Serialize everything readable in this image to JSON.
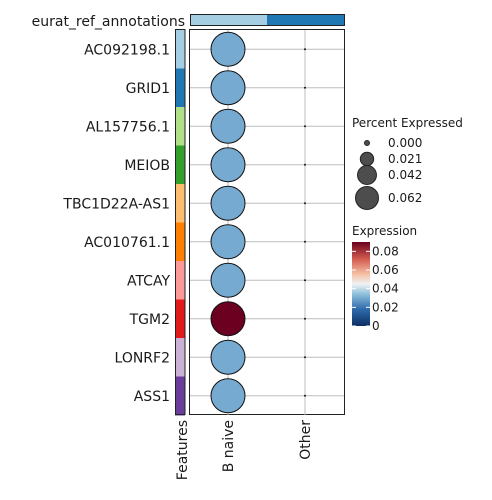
{
  "chart_data": {
    "type": "dotplot",
    "annotation_title": "eurat_ref_annotations",
    "annotation_colors": [
      "#a6cee3",
      "#1f78b4"
    ],
    "features_label": "Features",
    "feature_colors": [
      "#a6cee3",
      "#1f78b4",
      "#b2df8a",
      "#33a02c",
      "#fdbf6f",
      "#ff7f00",
      "#fb9a99",
      "#e31a1c",
      "#cab2d6",
      "#6a3d9a"
    ],
    "genes": [
      "AC092198.1",
      "GRID1",
      "AL157756.1",
      "MEIOB",
      "TBC1D22A-AS1",
      "AC010761.1",
      "ATCAY",
      "TGM2",
      "LONRF2",
      "ASS1"
    ],
    "groups": [
      "B naive",
      "Other"
    ],
    "percent_expressed": [
      [
        0.062,
        0.0
      ],
      [
        0.062,
        0.0
      ],
      [
        0.062,
        0.0
      ],
      [
        0.062,
        0.0
      ],
      [
        0.062,
        0.0
      ],
      [
        0.062,
        0.0
      ],
      [
        0.062,
        0.0
      ],
      [
        0.062,
        0.0
      ],
      [
        0.062,
        0.0
      ],
      [
        0.062,
        0.0
      ]
    ],
    "expression": [
      [
        0.03,
        0.0
      ],
      [
        0.03,
        0.0
      ],
      [
        0.03,
        0.0
      ],
      [
        0.03,
        0.0
      ],
      [
        0.03,
        0.0
      ],
      [
        0.03,
        0.0
      ],
      [
        0.03,
        0.0
      ],
      [
        0.09,
        0.0
      ],
      [
        0.03,
        0.0
      ],
      [
        0.03,
        0.0
      ]
    ],
    "size_legend": {
      "title": "Percent Expressed",
      "labels": [
        "0.000",
        "0.021",
        "0.042",
        "0.062"
      ],
      "values": [
        0.0,
        0.021,
        0.042,
        0.062
      ]
    },
    "color_legend": {
      "title": "Expression",
      "labels": [
        "0.08",
        "0.06",
        "0.04",
        "0.02",
        "0"
      ],
      "values": [
        0.08,
        0.06,
        0.04,
        0.02,
        0.0
      ],
      "range": [
        0,
        0.09
      ]
    }
  }
}
